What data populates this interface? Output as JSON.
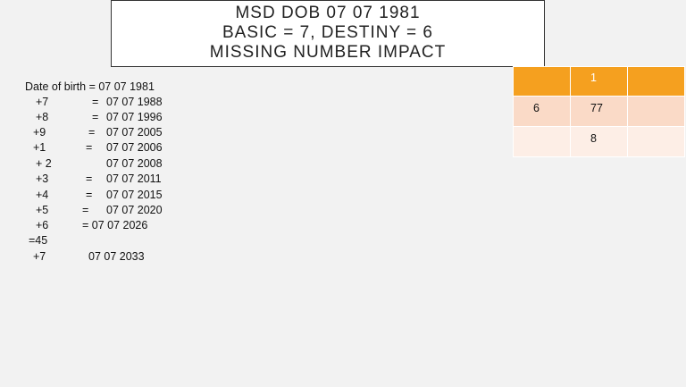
{
  "title": {
    "lines": [
      "MSD DOB 07 07 1981",
      "BASIC = 7, DESTINY = 6",
      "MISSING NUMBER IMPACT"
    ]
  },
  "text_lines": [
    [
      "Date of birth = 07 07 1981"
    ],
    [
      "+7",
      "=",
      "07 07 1988"
    ],
    [
      "+8",
      "=",
      "07 07 1996"
    ],
    [
      "+9",
      "=",
      "07 07 2005"
    ],
    [
      "+1",
      "=",
      "07 07 2006"
    ],
    [
      "+ 2",
      "07 07 2008"
    ],
    [
      "+3",
      "=",
      "07 07 2011"
    ],
    [
      "+4",
      "=",
      "07 07 2015"
    ],
    [
      "+5",
      "=",
      "07 07 2020"
    ],
    [
      "+6",
      "= 07 07 2026"
    ],
    [
      "=45"
    ],
    [
      "+7",
      "07 07 2033"
    ]
  ],
  "table": {
    "header": [
      null,
      "1",
      null
    ],
    "rows": [
      [
        "6",
        "77",
        null
      ],
      [
        null,
        "8",
        null
      ]
    ]
  }
}
